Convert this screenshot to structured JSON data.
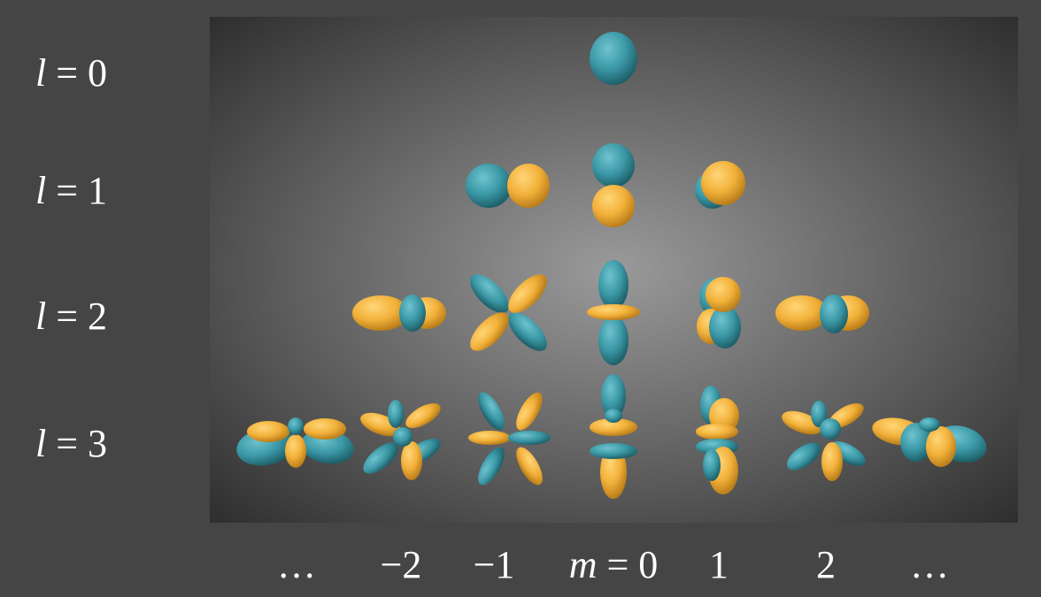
{
  "row_labels": [
    {
      "var": "l",
      "text": "= 0"
    },
    {
      "var": "l",
      "text": "= 1"
    },
    {
      "var": "l",
      "text": "= 2"
    },
    {
      "var": "l",
      "text": "= 3"
    }
  ],
  "column_labels": {
    "left_ellipsis": "…",
    "m_neg2": "−2",
    "m_neg1": "−1",
    "m_var": "m",
    "m_zero": "= 0",
    "m_pos1": "1",
    "m_pos2": "2",
    "right_ellipsis": "…"
  },
  "colors": {
    "positive_lobe": "#f4b43c",
    "negative_lobe": "#3e9aa8",
    "background": "#454545"
  }
}
